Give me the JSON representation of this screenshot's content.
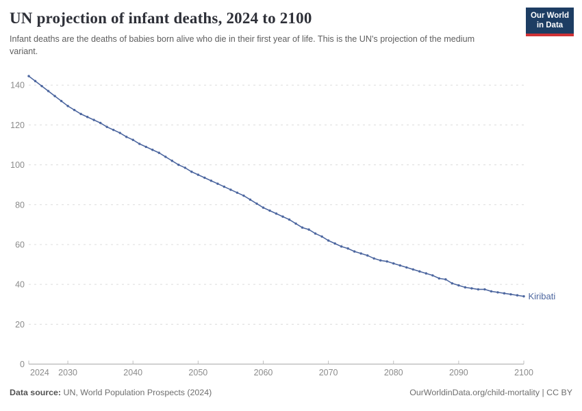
{
  "header": {
    "title": "UN projection of infant deaths, 2024 to 2100",
    "subtitle": "Infant deaths are the deaths of babies born alive who die in their first year of life. This is the UN's projection of the medium variant.",
    "logo": {
      "line1": "Our World",
      "line2": "in Data",
      "bg_color": "#1d3d63",
      "bar_color": "#cf3235"
    }
  },
  "chart_data": {
    "type": "line",
    "title": "UN projection of infant deaths, 2024 to 2100",
    "xlabel": "",
    "ylabel": "",
    "xlim": [
      2024,
      2100
    ],
    "ylim": [
      0,
      140
    ],
    "grid": "horizontal-dashed",
    "legend_position": "end-of-line-label",
    "x_ticks": [
      2024,
      2030,
      2040,
      2050,
      2060,
      2070,
      2080,
      2090,
      2100
    ],
    "y_ticks": [
      0,
      20,
      40,
      60,
      80,
      100,
      120,
      140
    ],
    "series": [
      {
        "name": "Kiribati",
        "color": "#4c669f",
        "x": [
          2024,
          2025,
          2026,
          2027,
          2028,
          2029,
          2030,
          2031,
          2032,
          2033,
          2034,
          2035,
          2036,
          2037,
          2038,
          2039,
          2040,
          2041,
          2042,
          2043,
          2044,
          2045,
          2046,
          2047,
          2048,
          2049,
          2050,
          2051,
          2052,
          2053,
          2054,
          2055,
          2056,
          2057,
          2058,
          2059,
          2060,
          2061,
          2062,
          2063,
          2064,
          2065,
          2066,
          2067,
          2068,
          2069,
          2070,
          2071,
          2072,
          2073,
          2074,
          2075,
          2076,
          2077,
          2078,
          2079,
          2080,
          2081,
          2082,
          2083,
          2084,
          2085,
          2086,
          2087,
          2088,
          2089,
          2090,
          2091,
          2092,
          2093,
          2094,
          2095,
          2096,
          2097,
          2098,
          2099,
          2100
        ],
        "values": [
          144.5,
          142.0,
          139.5,
          137.0,
          134.5,
          132.0,
          129.5,
          127.5,
          125.5,
          124.0,
          122.5,
          121.0,
          119.0,
          117.5,
          116.0,
          114.0,
          112.5,
          110.5,
          109.0,
          107.5,
          106.0,
          104.0,
          102.0,
          100.0,
          98.5,
          96.5,
          95.0,
          93.5,
          92.0,
          90.5,
          89.0,
          87.5,
          86.0,
          84.5,
          82.5,
          80.5,
          78.5,
          77.0,
          75.5,
          74.0,
          72.5,
          70.5,
          68.5,
          67.5,
          65.5,
          64.0,
          62.0,
          60.5,
          59.0,
          58.0,
          56.5,
          55.5,
          54.5,
          53.0,
          52.0,
          51.5,
          50.5,
          49.5,
          48.5,
          47.5,
          46.5,
          45.5,
          44.5,
          43.0,
          42.5,
          40.5,
          39.5,
          38.5,
          38.0,
          37.5,
          37.5,
          36.5,
          36.0,
          35.5,
          35.0,
          34.5,
          34.0
        ]
      }
    ]
  },
  "footer": {
    "datasource_label": "Data source:",
    "datasource_text": " UN, World Population Prospects (2024)",
    "credit": "OurWorldinData.org/child-mortality | CC BY"
  }
}
